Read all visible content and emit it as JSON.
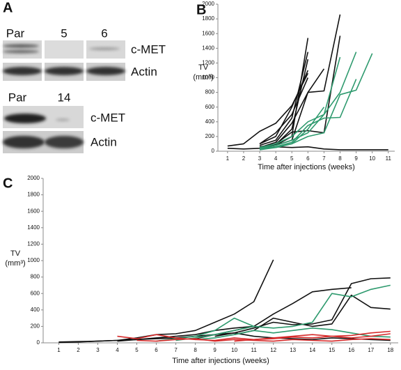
{
  "blots": {
    "label": "A",
    "top": {
      "lanes": [
        "Par",
        "5",
        "6"
      ],
      "rows": [
        "c-MET",
        "Actin"
      ]
    },
    "bottom": {
      "lanes": [
        "Par",
        "14"
      ],
      "rows": [
        "c-MET",
        "Actin"
      ]
    }
  },
  "chart_data": [
    {
      "type": "line",
      "label": "B",
      "x_label": "Time after injections (weeks)",
      "y_label": [
        "TV",
        "(mm³)"
      ],
      "x": [
        1,
        2,
        3,
        4,
        5,
        6,
        7,
        8,
        9,
        10,
        11
      ],
      "xlim": [
        0.4,
        11.4
      ],
      "xticks": [
        1,
        2,
        3,
        4,
        5,
        6,
        7,
        8,
        9,
        10,
        11
      ],
      "ylim": [
        0,
        2000
      ],
      "yticks": [
        0,
        200,
        400,
        600,
        800,
        1000,
        1200,
        1400,
        1600,
        1800,
        2000
      ],
      "series": [
        {
          "color": "#111111",
          "values": [
            70,
            100,
            270,
            380,
            620,
            1060,
            null,
            null,
            null,
            null,
            null
          ]
        },
        {
          "color": "#111111",
          "values": [
            null,
            null,
            50,
            80,
            200,
            1540,
            null,
            null,
            null,
            null,
            null
          ]
        },
        {
          "color": "#111111",
          "values": [
            null,
            null,
            80,
            150,
            450,
            1350,
            null,
            null,
            null,
            null,
            null
          ]
        },
        {
          "color": "#111111",
          "values": [
            null,
            null,
            100,
            250,
            500,
            1000,
            null,
            null,
            null,
            null,
            null
          ]
        },
        {
          "color": "#111111",
          "values": [
            null,
            null,
            60,
            90,
            300,
            1250,
            null,
            null,
            null,
            null,
            null
          ]
        },
        {
          "color": "#111111",
          "values": [
            null,
            null,
            50,
            120,
            380,
            800,
            820,
            1860,
            null,
            null,
            null
          ]
        },
        {
          "color": "#111111",
          "values": [
            null,
            null,
            30,
            100,
            260,
            280,
            250,
            1570,
            null,
            null,
            null
          ]
        },
        {
          "color": "#111111",
          "values": [
            null,
            null,
            60,
            80,
            150,
            800,
            1120,
            null,
            null,
            null,
            null
          ]
        },
        {
          "color": "#111111",
          "values": [
            40,
            30,
            40,
            60,
            50,
            60,
            30,
            20,
            20,
            20,
            20
          ]
        },
        {
          "color": "#111111",
          "values": [
            null,
            null,
            100,
            200,
            600,
            1100,
            null,
            null,
            null,
            null,
            null
          ]
        },
        {
          "color": "#2e9a6e",
          "values": [
            null,
            null,
            50,
            100,
            200,
            400,
            500,
            800,
            1350,
            null,
            null
          ]
        },
        {
          "color": "#2e9a6e",
          "values": [
            null,
            null,
            40,
            80,
            150,
            250,
            500,
            1280,
            null,
            null,
            null
          ]
        },
        {
          "color": "#2e9a6e",
          "values": [
            null,
            null,
            30,
            60,
            120,
            350,
            450,
            460,
            980,
            null,
            null
          ]
        },
        {
          "color": "#2e9a6e",
          "values": [
            null,
            null,
            20,
            50,
            100,
            300,
            600,
            null,
            null,
            null,
            null
          ]
        },
        {
          "color": "#2e9a6e",
          "values": [
            null,
            null,
            null,
            50,
            100,
            200,
            250,
            770,
            830,
            1330,
            null
          ]
        }
      ]
    },
    {
      "type": "line",
      "label": "C",
      "x_label": "Time after injections (weeks)",
      "y_label": [
        "TV",
        "(mm³)"
      ],
      "x": [
        1,
        2,
        3,
        4,
        5,
        6,
        7,
        8,
        9,
        10,
        11,
        12,
        13,
        14,
        15,
        16,
        17,
        18
      ],
      "xlim": [
        0.2,
        18.4
      ],
      "xticks": [
        1,
        2,
        3,
        4,
        5,
        6,
        7,
        8,
        9,
        10,
        11,
        12,
        13,
        14,
        15,
        16,
        17,
        18
      ],
      "ylim": [
        0,
        2000
      ],
      "yticks": [
        0,
        200,
        400,
        600,
        800,
        1000,
        1200,
        1400,
        1600,
        1800,
        2000
      ],
      "series": [
        {
          "color": "#111111",
          "values": [
            10,
            15,
            20,
            30,
            60,
            100,
            110,
            150,
            250,
            350,
            500,
            1010,
            null,
            null,
            null,
            null,
            null,
            null
          ]
        },
        {
          "color": "#111111",
          "values": [
            null,
            null,
            null,
            null,
            null,
            null,
            null,
            50,
            100,
            150,
            200,
            350,
            480,
            620,
            650,
            670,
            null,
            null
          ]
        },
        {
          "color": "#111111",
          "values": [
            null,
            null,
            null,
            null,
            null,
            null,
            null,
            null,
            80,
            120,
            180,
            250,
            220,
            230,
            280,
            720,
            780,
            790
          ]
        },
        {
          "color": "#111111",
          "values": [
            null,
            null,
            null,
            null,
            null,
            null,
            null,
            null,
            null,
            100,
            150,
            300,
            250,
            200,
            230,
            580,
            430,
            410
          ]
        },
        {
          "color": "#111111",
          "values": [
            5,
            10,
            20,
            30,
            40,
            50,
            60,
            80,
            100,
            120,
            80,
            60,
            50,
            40,
            60,
            50,
            40,
            30
          ]
        },
        {
          "color": "#111111",
          "values": [
            null,
            null,
            null,
            20,
            40,
            60,
            80,
            100,
            150,
            180,
            200,
            null,
            null,
            null,
            null,
            null,
            null,
            null
          ]
        },
        {
          "color": "#2e9a6e",
          "values": [
            null,
            null,
            null,
            null,
            null,
            null,
            30,
            60,
            100,
            150,
            200,
            180,
            200,
            250,
            600,
            560,
            650,
            700
          ]
        },
        {
          "color": "#2e9a6e",
          "values": [
            null,
            null,
            null,
            null,
            null,
            20,
            50,
            80,
            150,
            300,
            200,
            null,
            null,
            null,
            null,
            null,
            null,
            null
          ]
        },
        {
          "color": "#2e9a6e",
          "values": [
            null,
            null,
            null,
            null,
            null,
            null,
            null,
            40,
            60,
            100,
            150,
            120,
            150,
            180,
            160,
            120,
            80,
            70
          ]
        },
        {
          "color": "#d62a2a",
          "values": [
            null,
            null,
            null,
            80,
            50,
            100,
            60,
            40,
            30,
            60,
            40,
            50,
            70,
            60,
            80,
            90,
            120,
            140
          ]
        },
        {
          "color": "#d62a2a",
          "values": [
            null,
            null,
            null,
            null,
            30,
            20,
            40,
            50,
            20,
            40,
            30,
            20,
            40,
            30,
            20,
            40,
            50,
            40
          ]
        },
        {
          "color": "#d62a2a",
          "values": [
            null,
            null,
            null,
            null,
            null,
            null,
            null,
            null,
            null,
            20,
            40,
            60,
            80,
            100,
            80,
            60,
            80,
            110
          ]
        }
      ]
    }
  ]
}
